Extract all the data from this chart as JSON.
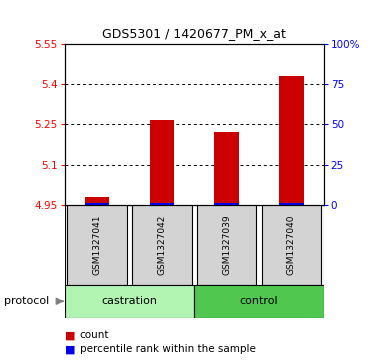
{
  "title": "GDS5301 / 1420677_PM_x_at",
  "samples": [
    "GSM1327041",
    "GSM1327042",
    "GSM1327039",
    "GSM1327040"
  ],
  "count_values": [
    4.98,
    5.265,
    5.22,
    5.43
  ],
  "percentile_values": [
    1.5,
    1.5,
    1.5,
    1.5
  ],
  "ylim_left": [
    4.95,
    5.55
  ],
  "ylim_right": [
    0,
    100
  ],
  "left_ticks": [
    4.95,
    5.1,
    5.25,
    5.4,
    5.55
  ],
  "right_ticks": [
    0,
    25,
    50,
    75,
    100
  ],
  "right_tick_labels": [
    "0",
    "25",
    "50",
    "75",
    "100%"
  ],
  "bar_color_red": "#CC0000",
  "bar_color_blue": "#0000EE",
  "legend_count_label": "count",
  "legend_percentile_label": "percentile rank within the sample",
  "protocol_label": "protocol",
  "group_label_castration": "castration",
  "group_label_control": "control",
  "sample_box_color": "#d3d3d3",
  "castration_color": "#b2f5b2",
  "control_color": "#50c850"
}
